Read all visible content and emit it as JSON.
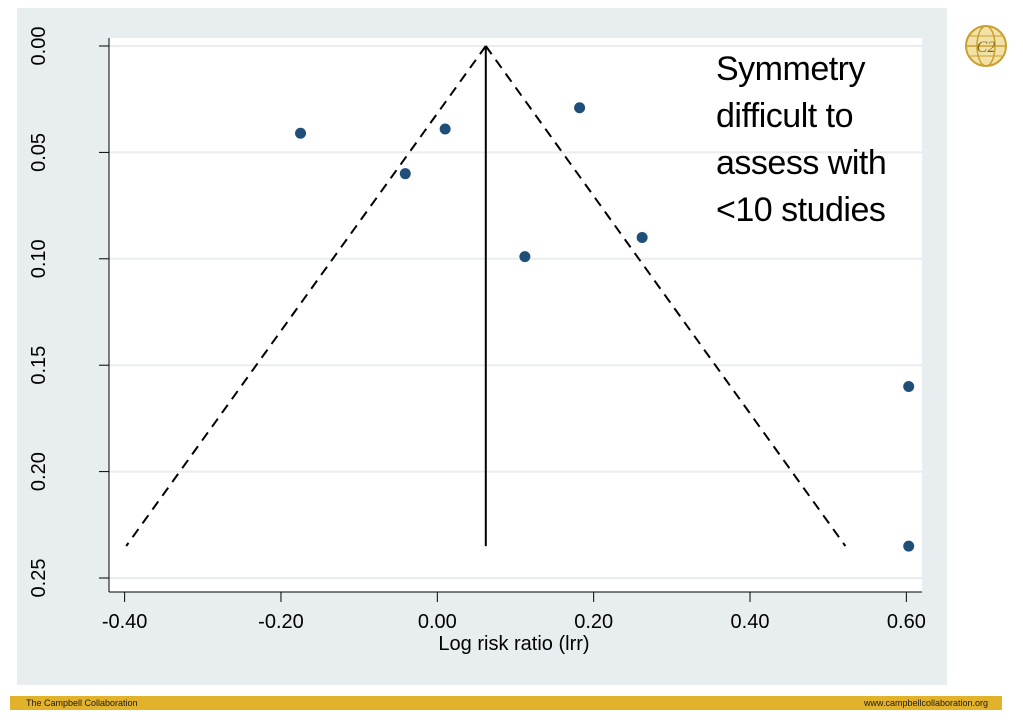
{
  "chart_data": {
    "type": "scatter",
    "title": "",
    "xlabel": "Log risk ratio (lrr)",
    "ylabel": "",
    "xlim": [
      -0.42,
      0.62
    ],
    "ylim": [
      0.25,
      0.0
    ],
    "y_inverted": true,
    "grid": true,
    "x_ticks": [
      "-0.40",
      "-0.20",
      "0.00",
      "0.20",
      "0.40",
      "0.60"
    ],
    "y_ticks": [
      "0.00",
      "0.05",
      "0.10",
      "0.15",
      "0.20",
      "0.25"
    ],
    "points": [
      {
        "x": -0.175,
        "y": 0.041
      },
      {
        "x": -0.041,
        "y": 0.06
      },
      {
        "x": 0.01,
        "y": 0.039
      },
      {
        "x": 0.112,
        "y": 0.099
      },
      {
        "x": 0.182,
        "y": 0.029
      },
      {
        "x": 0.262,
        "y": 0.09
      },
      {
        "x": 0.603,
        "y": 0.16
      },
      {
        "x": 0.603,
        "y": 0.235
      }
    ],
    "pooled_estimate": 0.062,
    "funnel": {
      "apex": [
        0.062,
        0.0
      ],
      "left": [
        -0.398,
        0.235
      ],
      "right": [
        0.522,
        0.235
      ]
    },
    "marker_color": "#1f4e79",
    "annotation": [
      "Symmetry",
      "difficult to",
      "assess with",
      "<10 studies"
    ]
  },
  "footer": {
    "left": "The Campbell Collaboration",
    "right": "www.campbellcollaboration.org",
    "color": "#e2b22a"
  },
  "logo": {
    "icon": "campbell-globe-logo",
    "text": "C2"
  }
}
